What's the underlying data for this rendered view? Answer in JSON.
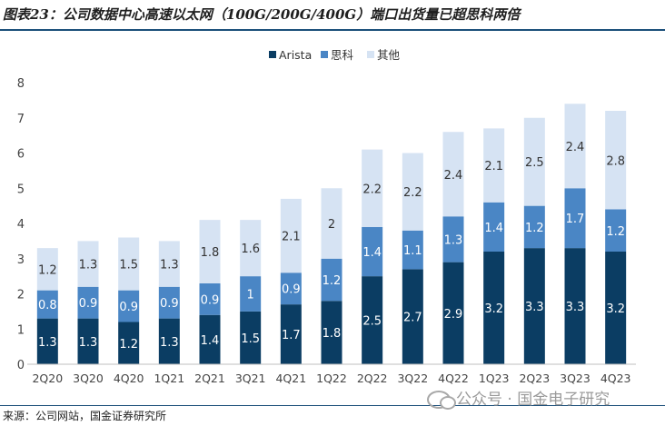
{
  "header": {
    "title": "图表23：公司数据中心高速以太网（100G/200G/400G）端口出货量已超思科两倍"
  },
  "footer": {
    "source": "来源：公司网站，国金证券研究所",
    "watermark": "公众号 · 国金电子研究"
  },
  "chart_data": {
    "type": "bar",
    "stacked": true,
    "categories": [
      "2Q20",
      "3Q20",
      "4Q20",
      "1Q21",
      "2Q21",
      "3Q21",
      "4Q21",
      "1Q22",
      "2Q22",
      "3Q22",
      "4Q22",
      "1Q23",
      "2Q23",
      "3Q23",
      "4Q23"
    ],
    "series": [
      {
        "name": "Arista",
        "color": "#0b3d63",
        "label_color": "#ffffff",
        "values": [
          1.3,
          1.3,
          1.2,
          1.3,
          1.4,
          1.5,
          1.7,
          1.8,
          2.5,
          2.7,
          2.9,
          3.2,
          3.3,
          3.3,
          3.2
        ]
      },
      {
        "name": "思科",
        "color": "#4a86c5",
        "label_color": "#ffffff",
        "values": [
          0.8,
          0.9,
          0.9,
          0.9,
          0.9,
          1,
          0.9,
          1.2,
          1.4,
          1.1,
          1.3,
          1.4,
          1.2,
          1.7,
          1.2
        ]
      },
      {
        "name": "其他",
        "color": "#d6e3f3",
        "label_color": "#333333",
        "values": [
          1.2,
          1.3,
          1.5,
          1.3,
          1.8,
          1.6,
          2.1,
          2,
          2.2,
          2.2,
          2.4,
          2.1,
          2.5,
          2.4,
          2.8
        ]
      }
    ],
    "yticks": [
      "0",
      "1",
      "2",
      "3",
      "4",
      "5",
      "6",
      "7",
      "8"
    ],
    "ylim": [
      0,
      8
    ],
    "legend_position": "top-center",
    "grid": false
  }
}
